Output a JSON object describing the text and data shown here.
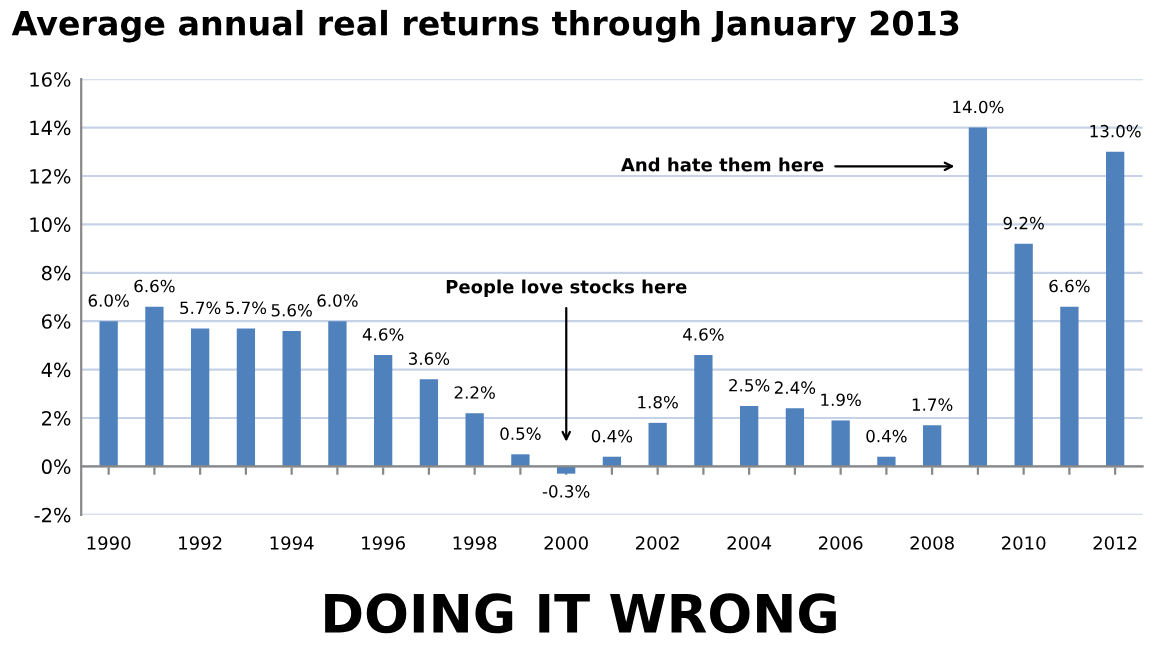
{
  "chart_data": {
    "type": "bar",
    "title": "Average annual real returns through January 2013",
    "categories": [
      "1990",
      null,
      "1992",
      null,
      "1994",
      null,
      "1996",
      null,
      "1998",
      null,
      "2000",
      null,
      "2002",
      null,
      "2004",
      null,
      "2006",
      null,
      "2008",
      null,
      "2010",
      null,
      "2012"
    ],
    "values": [
      6.0,
      6.6,
      5.7,
      5.7,
      5.6,
      6.0,
      4.6,
      3.6,
      2.2,
      0.5,
      -0.3,
      0.4,
      1.8,
      4.6,
      2.5,
      2.4,
      1.9,
      0.4,
      1.7,
      14.0,
      9.2,
      6.6,
      13.0
    ],
    "value_labels": [
      "6.0%",
      "6.6%",
      "5.7%",
      "5.7%",
      "5.6%",
      "6.0%",
      "4.6%",
      "3.6%",
      "2.2%",
      "0.5%",
      "-0.3%",
      "0.4%",
      "1.8%",
      "4.6%",
      "2.5%",
      "2.4%",
      "1.9%",
      "0.4%",
      "1.7%",
      "14.0%",
      "9.2%",
      "6.6%",
      "13.0%"
    ],
    "color": "#4f81bd",
    "ylim": [
      -2,
      16
    ],
    "yticks": [
      {
        "value": -2,
        "label": "-2%"
      },
      {
        "value": 0,
        "label": "0%"
      },
      {
        "value": 2,
        "label": "2%"
      },
      {
        "value": 4,
        "label": "4%"
      },
      {
        "value": 6,
        "label": "6%"
      },
      {
        "value": 8,
        "label": "8%"
      },
      {
        "value": 10,
        "label": "10%"
      },
      {
        "value": 12,
        "label": "12%"
      },
      {
        "value": 14,
        "label": "14%"
      },
      {
        "value": 16,
        "label": "16%"
      }
    ],
    "grid": "y",
    "annotations": [
      "People love stocks here",
      "And hate them here",
      "DOING IT WRONG"
    ]
  }
}
